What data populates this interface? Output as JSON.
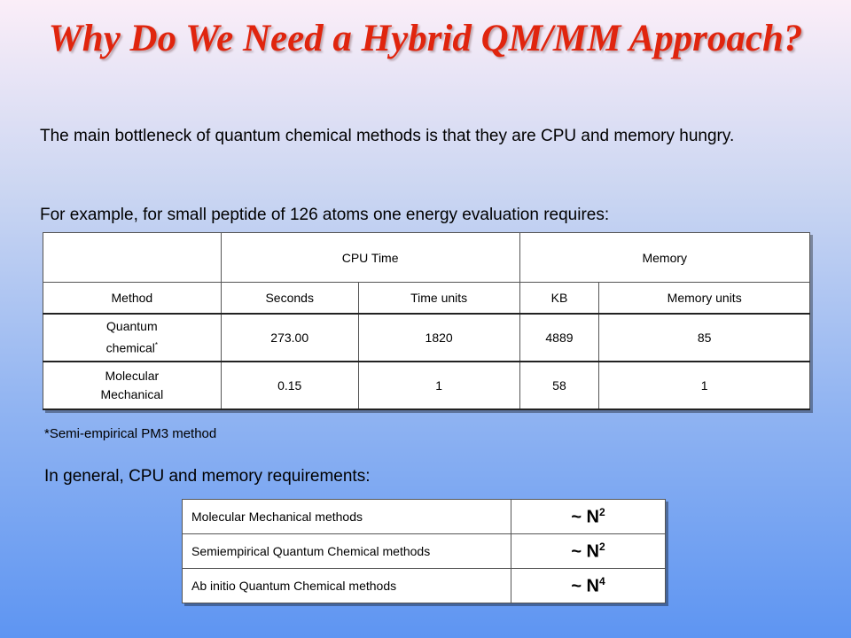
{
  "title": "Why Do We Need a Hybrid QM/MM Approach?",
  "paragraph1": "The main bottleneck of quantum chemical methods is that they are CPU and memory hungry.",
  "paragraph2": "For example, for small peptide of 126 atoms one energy evaluation requires:",
  "table1": {
    "group_headers": [
      "CPU Time",
      "Memory"
    ],
    "column_headers": [
      "Method",
      "Seconds",
      "Time units",
      "KB",
      "Memory units"
    ],
    "rows": [
      {
        "method_line1": "Quantum",
        "method_line2": "chemical",
        "marker": "*",
        "values": [
          "273.00",
          "1820",
          "4889",
          "85"
        ]
      },
      {
        "method_line1": "Molecular",
        "method_line2": "Mechanical",
        "marker": "",
        "values": [
          "0.15",
          "1",
          "58",
          "1"
        ]
      }
    ]
  },
  "footnote": "*Semi-empirical PM3 method",
  "paragraph3": "In general, CPU and memory requirements:",
  "table2": {
    "rows": [
      {
        "method": "Molecular Mechanical methods",
        "scaling_prefix": "~ N",
        "exponent": "2"
      },
      {
        "method": "Semiempirical Quantum Chemical methods",
        "scaling_prefix": "~ N",
        "exponent": "2"
      },
      {
        "method": "Ab initio Quantum Chemical methods",
        "scaling_prefix": "~ N",
        "exponent": "4"
      }
    ]
  }
}
